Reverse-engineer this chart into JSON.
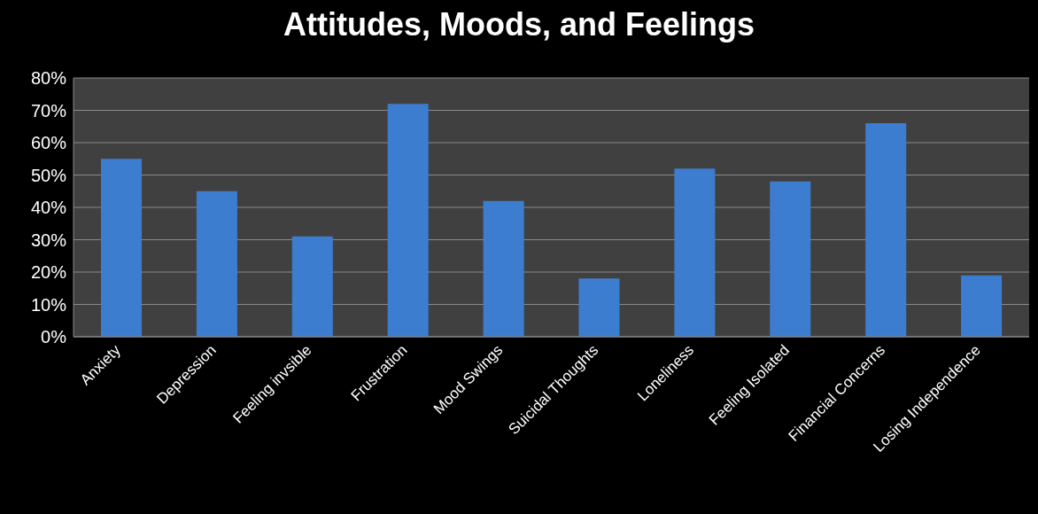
{
  "chart_data": {
    "type": "bar",
    "title": "Attitudes, Moods, and Feelings",
    "categories": [
      "Anxiety",
      "Depression",
      "Feeling invsible",
      "Frustration",
      "Mood Swings",
      "Suicidal Thoughts",
      "Loneliness",
      "Feeling Isolated",
      "Financial Concerns",
      "Losing Independence"
    ],
    "values": [
      55,
      45,
      31,
      72,
      42,
      18,
      52,
      48,
      66,
      19
    ],
    "color": "#3d7dd0",
    "ylim": [
      0,
      80
    ],
    "yticks": [
      {
        "value": 0,
        "label": "0%"
      },
      {
        "value": 10,
        "label": "10%"
      },
      {
        "value": 20,
        "label": "20%"
      },
      {
        "value": 30,
        "label": "30%"
      },
      {
        "value": 40,
        "label": "40%"
      },
      {
        "value": 50,
        "label": "50%"
      },
      {
        "value": 60,
        "label": "60%"
      },
      {
        "value": 70,
        "label": "70%"
      },
      {
        "value": 80,
        "label": "80%"
      }
    ],
    "grid": "y"
  }
}
